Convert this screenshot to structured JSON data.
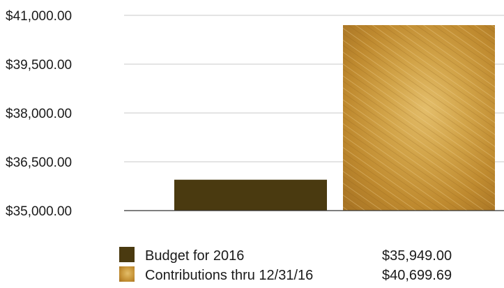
{
  "chart_data": {
    "type": "bar",
    "categories": [
      "Budget for 2016",
      "Contributions thru 12/31/16"
    ],
    "values": [
      35949.0,
      40699.69
    ],
    "value_labels": [
      "$35,949.00",
      "$40,699.69"
    ],
    "ylim": [
      35000,
      41000
    ],
    "yticks": [
      35000,
      36500,
      38000,
      39500,
      41000
    ],
    "ytick_labels": [
      "$35,000.00",
      "$36,500.00",
      "$38,000.00",
      "$39,500.00",
      "$41,000.00"
    ],
    "grid": true,
    "legend_position": "bottom",
    "colors": [
      "#4a3a10",
      "#c8962e"
    ]
  }
}
